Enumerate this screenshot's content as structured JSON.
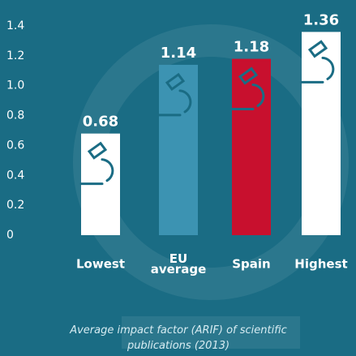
{
  "chart_data": {
    "type": "bar",
    "title": "Average impact factor (ARIF) of scientific publications (2013)",
    "categories": [
      "Lowest",
      "EU average",
      "Spain",
      "Highest"
    ],
    "values": [
      0.68,
      1.14,
      1.18,
      1.36
    ],
    "colors": [
      "#ffffff",
      "#3c93b2",
      "#c8102e",
      "#ffffff"
    ],
    "ylim": [
      0,
      1.4
    ],
    "yticks": [
      0,
      0.2,
      0.4,
      0.6,
      0.8,
      {
        "value": 1,
        "label": "1.0"
      },
      1.2,
      1.4
    ]
  }
}
